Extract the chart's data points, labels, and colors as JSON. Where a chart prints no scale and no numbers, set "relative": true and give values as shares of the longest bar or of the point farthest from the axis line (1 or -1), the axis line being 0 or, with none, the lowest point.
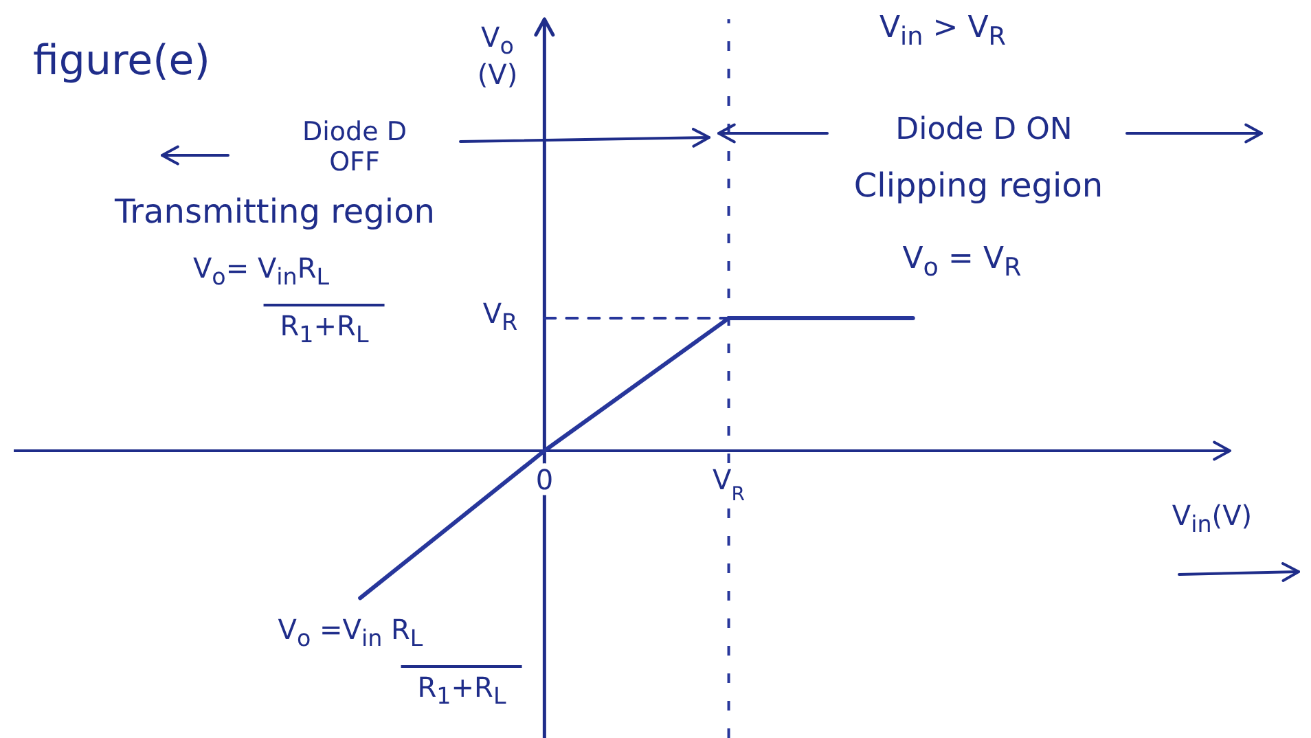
{
  "chart_data": {
    "type": "line",
    "relative": true,
    "title": "figure(e)",
    "categories": [
      null,
      "0",
      "V$_{R}$",
      null
    ],
    "series": [
      {
        "color": "#27369b",
        "values": [
          -1,
          0,
          0.9,
          0.9
        ]
      },
      {
        "color": "#27369b",
        "values": [
          null,
          0.9,
          0.9,
          null
        ],
        "line_style": "dashed"
      }
    ],
    "ref_lines": [
      {
        "axis": "x",
        "value": "V$_{R}$",
        "color": "#27369b",
        "line_style": "dashed"
      }
    ],
    "marker": "none",
    "annotations": [
      "Diode D OFF",
      "Transmitting region",
      "V$_{o}$= V$_{in}$R$_{L}$",
      "R$_{1}$+R$_{L}$",
      "V$_{in}$ > V$_{R}$",
      "Diode D ON",
      "Clipping region",
      "V$_{o}$ = V$_{R}$",
      "V$_{o}$ =V$_{in}$ R$_{L}$",
      "R$_{1}$+R$_{L}$",
      "V$_{R}$",
      "V$_{o}$ (V)",
      "V$_{in}$(V)"
    ]
  }
}
